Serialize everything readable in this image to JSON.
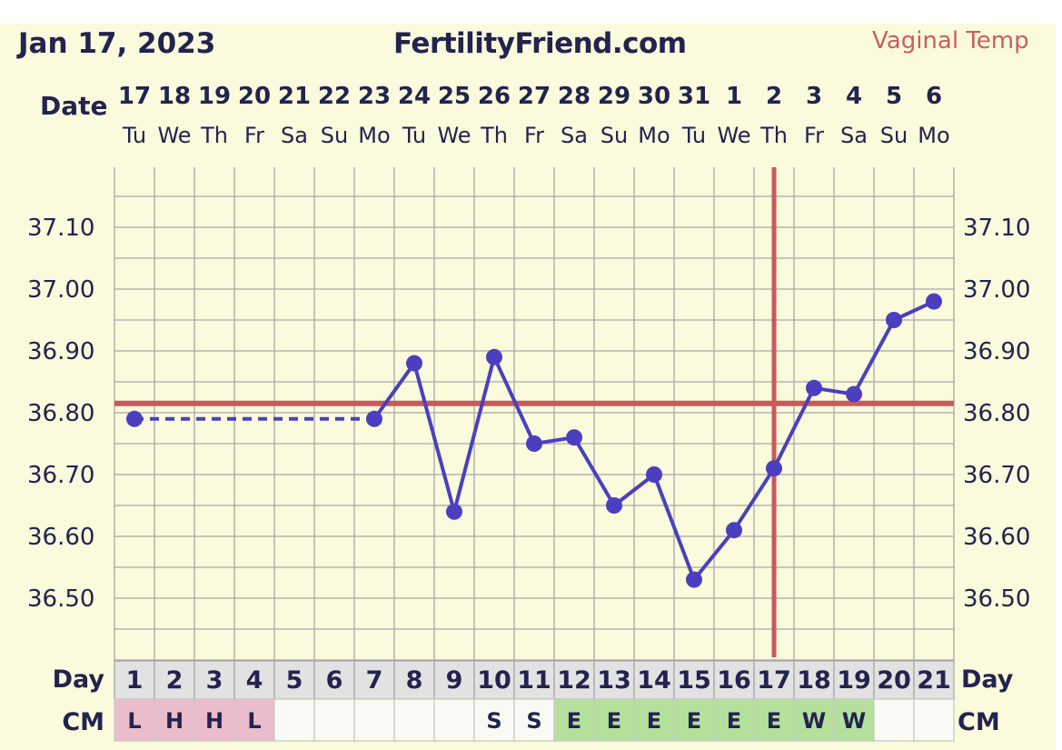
{
  "header": {
    "date": "Jan 17, 2023",
    "site": "FertilityFriend.com",
    "temp_type": "Vaginal Temp",
    "date_label": "Date"
  },
  "colors": {
    "background": "#fafadc",
    "grid": "#a8a8a8",
    "line": "#4b3fbf",
    "coverline": "#c85a5a",
    "text": "#23234f",
    "cm_pink": "#ebbccb",
    "cm_green": "#b4e09c",
    "cell_gray": "#e2e2e2",
    "cell_white": "#fafaf5"
  },
  "chart_data": {
    "type": "line",
    "title": "FertilityFriend.com",
    "x": {
      "dates": [
        "17",
        "18",
        "19",
        "20",
        "21",
        "22",
        "23",
        "24",
        "25",
        "26",
        "27",
        "28",
        "29",
        "30",
        "31",
        "1",
        "2",
        "3",
        "4",
        "5",
        "6"
      ],
      "weekdays": [
        "Tu",
        "We",
        "Th",
        "Fr",
        "Sa",
        "Su",
        "Mo",
        "Tu",
        "We",
        "Th",
        "Fr",
        "Sa",
        "Su",
        "Mo",
        "Tu",
        "We",
        "Th",
        "Fr",
        "Sa",
        "Su",
        "Mo"
      ],
      "cycle_days": [
        "1",
        "2",
        "3",
        "4",
        "5",
        "6",
        "7",
        "8",
        "9",
        "10",
        "11",
        "12",
        "13",
        "14",
        "15",
        "16",
        "17",
        "18",
        "19",
        "20",
        "21"
      ]
    },
    "series": [
      {
        "values": [
          36.79,
          null,
          null,
          null,
          null,
          null,
          36.79,
          36.88,
          36.64,
          36.89,
          36.75,
          36.76,
          36.65,
          36.7,
          36.53,
          36.61,
          36.71,
          36.84,
          36.83,
          36.95,
          36.98
        ]
      }
    ],
    "dashed_gap": [
      1,
      7
    ],
    "yticks": [
      37.1,
      37.0,
      36.9,
      36.8,
      36.7,
      36.6,
      36.5
    ],
    "ylim": [
      36.44,
      37.2
    ],
    "coverline": 36.815,
    "ovulation_day": 17,
    "grid": true
  },
  "rows": {
    "day_label": "Day",
    "cm_label": "CM",
    "cm": [
      "L",
      "H",
      "H",
      "L",
      "",
      "",
      "",
      "",
      "",
      "S",
      "S",
      "E",
      "E",
      "E",
      "E",
      "E",
      "E",
      "W",
      "W",
      "",
      ""
    ],
    "cm_colors": [
      "pink",
      "pink",
      "pink",
      "pink",
      "white",
      "white",
      "white",
      "white",
      "white",
      "white",
      "white",
      "green",
      "green",
      "green",
      "green",
      "green",
      "green",
      "green",
      "green",
      "white",
      "white"
    ]
  }
}
